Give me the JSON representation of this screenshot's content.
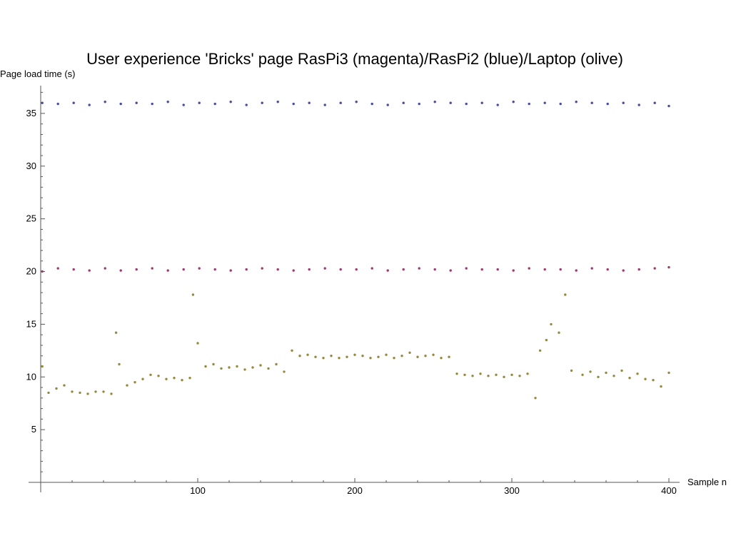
{
  "chart_data": {
    "type": "scatter",
    "title": "User experience 'Bricks' page RasPi3 (magenta)/RasPi2 (blue)/Laptop (olive)",
    "xlabel": "Sample n",
    "ylabel": "Page load time (s)",
    "xlim": [
      0,
      400
    ],
    "ylim": [
      0,
      37.5
    ],
    "xticks": [
      100,
      200,
      300,
      400
    ],
    "yticks": [
      5,
      10,
      15,
      20,
      25,
      30,
      35
    ],
    "grid": false,
    "legend": "none",
    "colors": {
      "magenta": "#9b3c6e",
      "blue": "#4b4ba0",
      "olive": "#948a3c"
    },
    "series": [
      {
        "color": "#4b4ba0",
        "x": [
          1,
          11,
          21,
          31,
          41,
          51,
          61,
          71,
          81,
          91,
          101,
          111,
          121,
          131,
          141,
          151,
          161,
          171,
          181,
          191,
          201,
          211,
          221,
          231,
          241,
          251,
          261,
          271,
          281,
          291,
          301,
          311,
          321,
          331,
          341,
          351,
          361,
          371,
          381,
          391,
          400
        ],
        "y": [
          36.0,
          35.9,
          36.0,
          35.8,
          36.1,
          35.9,
          36.0,
          35.9,
          36.1,
          35.8,
          36.0,
          35.9,
          36.1,
          35.8,
          36.0,
          36.1,
          35.9,
          36.0,
          35.8,
          36.0,
          36.1,
          35.9,
          35.8,
          36.0,
          35.9,
          36.1,
          36.0,
          35.9,
          36.0,
          35.8,
          36.1,
          35.9,
          36.0,
          35.9,
          36.1,
          36.0,
          35.9,
          36.0,
          35.8,
          36.0,
          35.7
        ]
      },
      {
        "color": "#9b3c6e",
        "x": [
          1,
          11,
          21,
          31,
          41,
          51,
          61,
          71,
          81,
          91,
          101,
          111,
          121,
          131,
          141,
          151,
          161,
          171,
          181,
          191,
          201,
          211,
          221,
          231,
          241,
          251,
          261,
          271,
          281,
          291,
          301,
          311,
          321,
          331,
          341,
          351,
          361,
          371,
          381,
          391,
          400
        ],
        "y": [
          20.0,
          20.3,
          20.2,
          20.1,
          20.3,
          20.1,
          20.2,
          20.3,
          20.1,
          20.2,
          20.3,
          20.2,
          20.1,
          20.2,
          20.3,
          20.2,
          20.1,
          20.2,
          20.3,
          20.2,
          20.2,
          20.3,
          20.1,
          20.2,
          20.3,
          20.2,
          20.1,
          20.3,
          20.2,
          20.2,
          20.1,
          20.3,
          20.2,
          20.2,
          20.1,
          20.3,
          20.2,
          20.1,
          20.2,
          20.3,
          20.4
        ]
      },
      {
        "color": "#948a3c",
        "x": [
          1,
          5,
          10,
          15,
          20,
          25,
          30,
          35,
          40,
          45,
          48,
          50,
          55,
          60,
          65,
          70,
          75,
          80,
          85,
          90,
          95,
          97,
          100,
          105,
          110,
          115,
          120,
          125,
          130,
          135,
          140,
          145,
          150,
          155,
          160,
          165,
          170,
          175,
          180,
          185,
          190,
          195,
          200,
          205,
          210,
          215,
          220,
          225,
          230,
          235,
          240,
          245,
          250,
          255,
          260,
          265,
          270,
          275,
          280,
          285,
          290,
          295,
          300,
          305,
          310,
          315,
          318,
          322,
          325,
          330,
          334,
          338,
          345,
          350,
          355,
          360,
          365,
          370,
          375,
          380,
          385,
          390,
          395,
          400
        ],
        "y": [
          11.0,
          8.5,
          8.9,
          9.2,
          8.6,
          8.5,
          8.4,
          8.6,
          8.6,
          8.4,
          14.2,
          11.2,
          9.2,
          9.5,
          9.8,
          10.2,
          10.1,
          9.8,
          9.9,
          9.7,
          9.9,
          17.8,
          13.2,
          11.0,
          11.2,
          10.8,
          10.9,
          11.0,
          10.7,
          10.9,
          11.1,
          10.8,
          11.2,
          10.5,
          12.5,
          12.0,
          12.1,
          11.9,
          11.8,
          12.0,
          11.8,
          11.9,
          12.1,
          12.0,
          11.8,
          11.9,
          12.1,
          11.8,
          12.0,
          12.3,
          11.9,
          12.0,
          12.1,
          11.8,
          11.9,
          10.3,
          10.2,
          10.1,
          10.3,
          10.1,
          10.2,
          10.0,
          10.2,
          10.1,
          10.3,
          8.0,
          12.5,
          13.5,
          15.0,
          14.2,
          17.8,
          10.6,
          10.2,
          10.5,
          10.0,
          10.4,
          10.1,
          10.6,
          9.9,
          10.3,
          9.8,
          9.7,
          9.1,
          10.4
        ]
      }
    ]
  }
}
